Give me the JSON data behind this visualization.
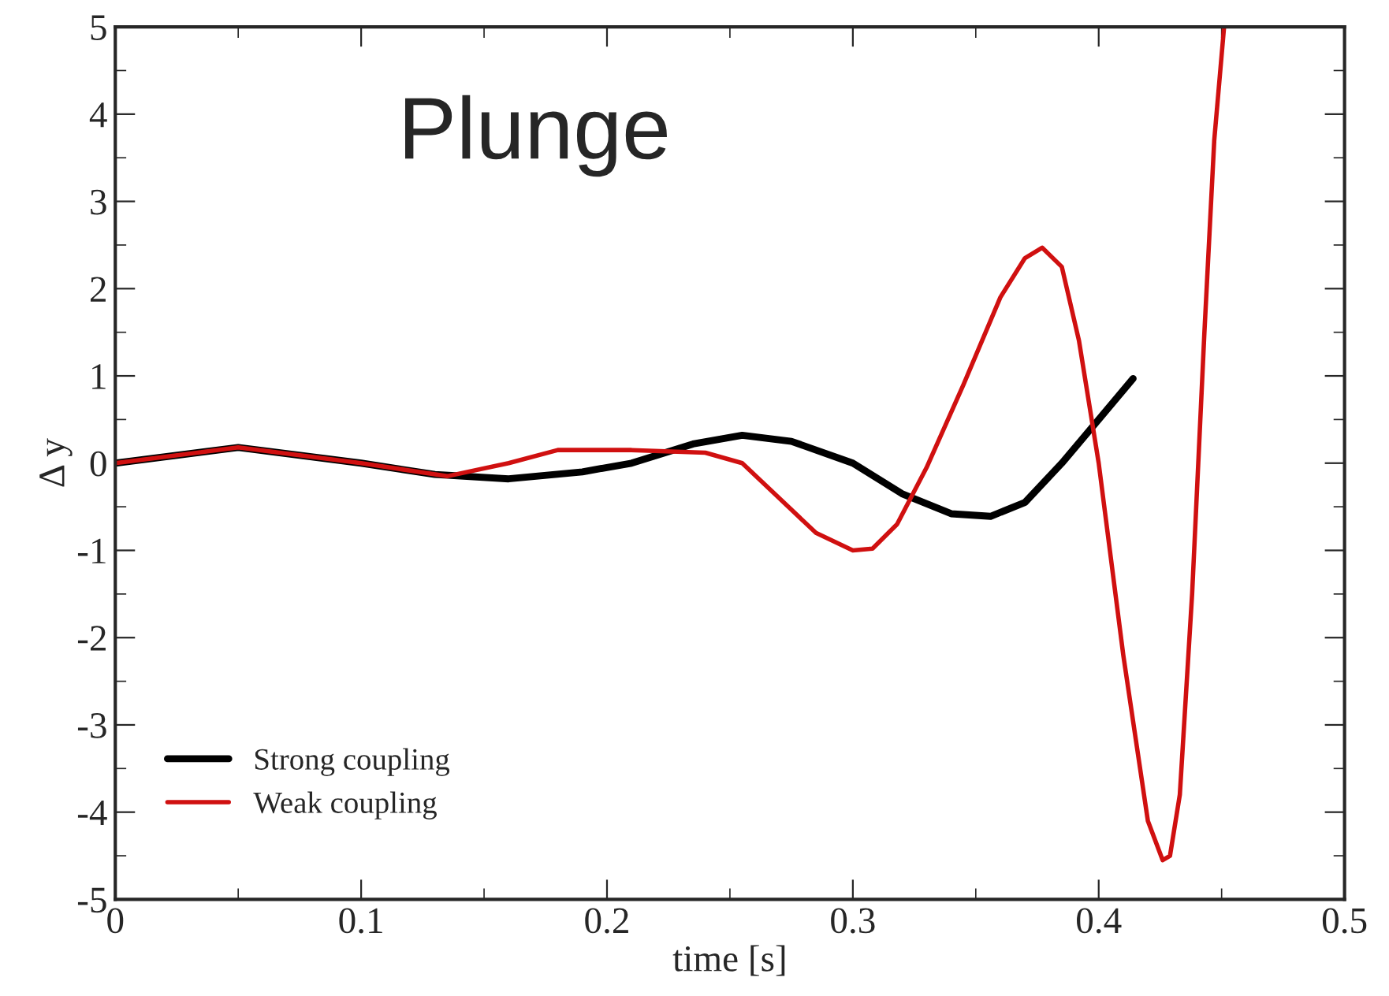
{
  "chart_data": {
    "type": "line",
    "title": "Plunge",
    "xlabel": "time [s]",
    "ylabel": "Δ y",
    "xlim": [
      0,
      0.5
    ],
    "xticks": [
      0,
      0.1,
      0.2,
      0.3,
      0.4,
      0.5
    ],
    "ylim": [
      -5,
      5
    ],
    "yticks": [
      -5,
      -4,
      -3,
      -2,
      -1,
      0,
      1,
      2,
      3,
      4,
      5
    ],
    "legend": "bottom left",
    "grid": false,
    "line_style": "solid",
    "marker": "none",
    "series": [
      {
        "name": "Strong coupling",
        "color": "#000000",
        "x": [
          0,
          0.05,
          0.1,
          0.13,
          0.16,
          0.19,
          0.21,
          0.235,
          0.255,
          0.275,
          0.3,
          0.32,
          0.34,
          0.356,
          0.37,
          0.385,
          0.4,
          0.414
        ],
        "values": [
          0,
          0.18,
          0,
          -0.13,
          -0.18,
          -0.1,
          0,
          0.22,
          0.32,
          0.25,
          0,
          -0.35,
          -0.58,
          -0.61,
          -0.45,
          0,
          0.5,
          0.97
        ]
      },
      {
        "name": "Weak coupling",
        "color": "#d01010",
        "x": [
          0,
          0.05,
          0.1,
          0.135,
          0.16,
          0.18,
          0.21,
          0.24,
          0.255,
          0.27,
          0.285,
          0.3,
          0.308,
          0.318,
          0.33,
          0.345,
          0.36,
          0.37,
          0.377,
          0.385,
          0.392,
          0.4,
          0.41,
          0.42,
          0.426,
          0.429,
          0.433,
          0.438,
          0.443,
          0.447,
          0.451
        ],
        "values": [
          0,
          0.18,
          0,
          -0.15,
          0,
          0.15,
          0.15,
          0.12,
          0,
          -0.4,
          -0.8,
          -1.0,
          -0.98,
          -0.7,
          -0.05,
          0.9,
          1.9,
          2.35,
          2.47,
          2.25,
          1.4,
          0,
          -2.2,
          -4.1,
          -4.55,
          -4.5,
          -3.8,
          -1.5,
          1.5,
          3.7,
          5
        ]
      }
    ]
  }
}
